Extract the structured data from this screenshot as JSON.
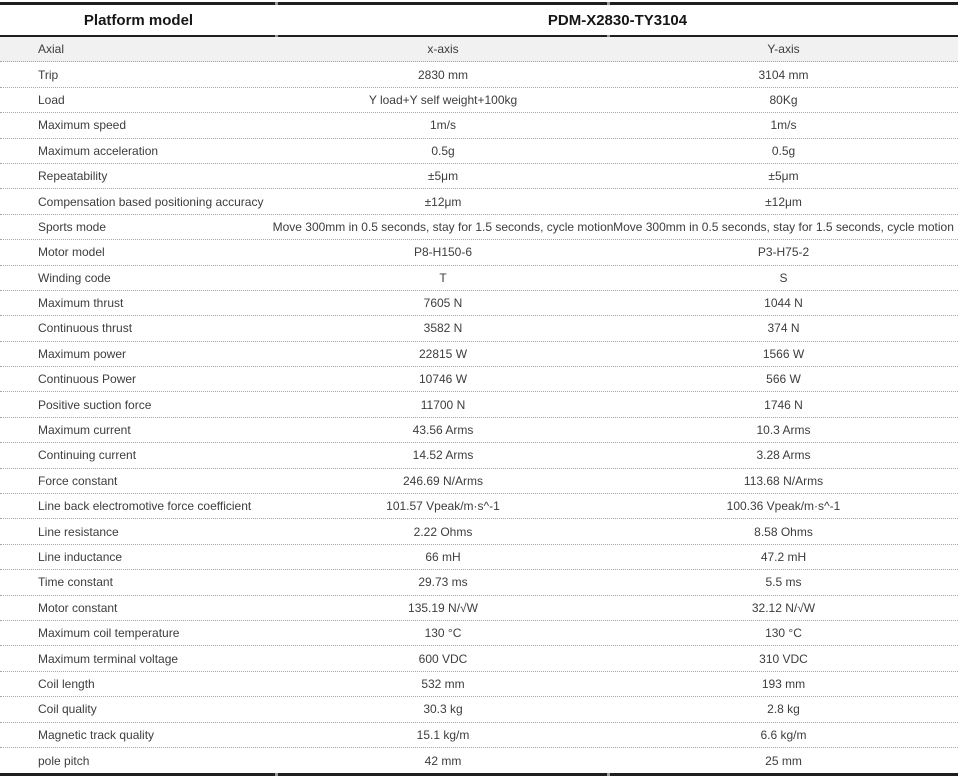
{
  "colors": {
    "border_color": "#1f1f1f",
    "divider_color": "#a6a6a6",
    "highlight_row_bg": "#f1f1f1"
  },
  "table": {
    "header": {
      "label_column_title": "Platform model",
      "model_number": "PDM-X2830-TY3104"
    },
    "rows": [
      {
        "label": "Axial",
        "x": "x-axis",
        "y": "Y-axis",
        "highlight": true
      },
      {
        "label": "Trip",
        "x": "2830 mm",
        "y": "3104 mm"
      },
      {
        "label": "Load",
        "x": "Y load+Y self weight+100kg",
        "y": "80Kg"
      },
      {
        "label": "Maximum speed",
        "x": "1m/s",
        "y": "1m/s"
      },
      {
        "label": "Maximum acceleration",
        "x": "0.5g",
        "y": "0.5g"
      },
      {
        "label": "Repeatability",
        "x": "±5μm",
        "y": "±5μm"
      },
      {
        "label": "Compensation based positioning accuracy",
        "x": "±12μm",
        "y": "±12μm"
      },
      {
        "label": "Sports mode",
        "x": "Move 300mm in 0.5 seconds, stay for 1.5 seconds, cycle motion",
        "y": "Move 300mm in 0.5 seconds, stay for 1.5 seconds, cycle motion"
      },
      {
        "label": "Motor model",
        "x": "P8-H150-6",
        "y": "P3-H75-2"
      },
      {
        "label": "Winding code",
        "x": "T",
        "y": "S"
      },
      {
        "label": "Maximum thrust",
        "x": "7605 N",
        "y": "1044 N"
      },
      {
        "label": "Continuous thrust",
        "x": "3582 N",
        "y": "374 N"
      },
      {
        "label": "Maximum power",
        "x": "22815 W",
        "y": "1566 W"
      },
      {
        "label": "Continuous Power",
        "x": "10746 W",
        "y": "566 W"
      },
      {
        "label": "Positive suction force",
        "x": "11700 N",
        "y": "1746 N"
      },
      {
        "label": "Maximum current",
        "x": "43.56 Arms",
        "y": "10.3 Arms"
      },
      {
        "label": "Continuing current",
        "x": "14.52 Arms",
        "y": "3.28 Arms"
      },
      {
        "label": "Force constant",
        "x": "246.69 N/Arms",
        "y": "113.68 N/Arms"
      },
      {
        "label": "Line back electromotive force coefficient",
        "x": "101.57 Vpeak/m·s^-1",
        "y": "100.36 Vpeak/m·s^-1"
      },
      {
        "label": "Line resistance",
        "x": "2.22 Ohms",
        "y": "8.58 Ohms"
      },
      {
        "label": "Line inductance",
        "x": "66 mH",
        "y": "47.2 mH"
      },
      {
        "label": "Time constant",
        "x": "29.73 ms",
        "y": "5.5 ms"
      },
      {
        "label": "Motor constant",
        "x": "135.19 N/√W",
        "y": "32.12 N/√W"
      },
      {
        "label": "Maximum coil temperature",
        "x": "130 °C",
        "y": "130 °C"
      },
      {
        "label": "Maximum terminal voltage",
        "x": "600 VDC",
        "y": "310 VDC"
      },
      {
        "label": "Coil length",
        "x": "532 mm",
        "y": "193 mm"
      },
      {
        "label": "Coil quality",
        "x": "30.3 kg",
        "y": "2.8 kg"
      },
      {
        "label": "Magnetic track quality",
        "x": "15.1 kg/m",
        "y": "6.6 kg/m"
      },
      {
        "label": "pole pitch",
        "x": "42 mm",
        "y": "25 mm"
      }
    ]
  }
}
